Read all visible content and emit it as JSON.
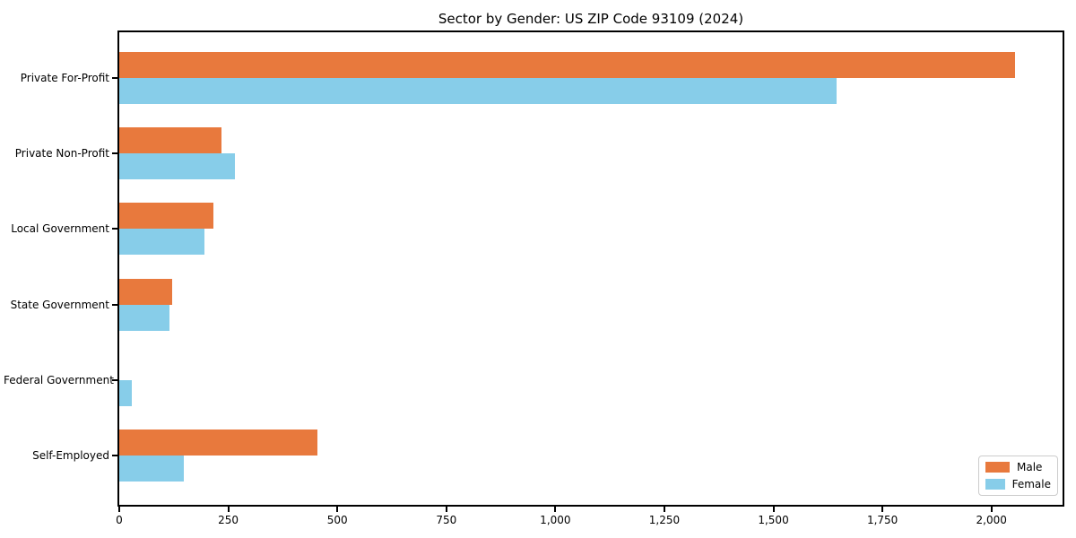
{
  "chart_data": {
    "type": "bar",
    "orientation": "horizontal",
    "title": "Sector by Gender: US ZIP Code 93109 (2024)",
    "categories": [
      "Private For-Profit",
      "Private Non-Profit",
      "Local Government",
      "State Government",
      "Federal Government",
      "Self-Employed"
    ],
    "series": [
      {
        "name": "Male",
        "color": "#E8793D",
        "values": [
          2055,
          235,
          215,
          122,
          0,
          455
        ]
      },
      {
        "name": "Female",
        "color": "#87CDE9",
        "values": [
          1645,
          265,
          195,
          115,
          28,
          148
        ]
      }
    ],
    "xlabel": "",
    "ylabel": "",
    "xlim": [
      0,
      2163
    ],
    "xticks": [
      {
        "value": 0,
        "label": "0"
      },
      {
        "value": 250,
        "label": "250"
      },
      {
        "value": 500,
        "label": "500"
      },
      {
        "value": 750,
        "label": "750"
      },
      {
        "value": 1000,
        "label": "1,000"
      },
      {
        "value": 1250,
        "label": "1,250"
      },
      {
        "value": 1500,
        "label": "1,500"
      },
      {
        "value": 1750,
        "label": "1,750"
      },
      {
        "value": 2000,
        "label": "2,000"
      }
    ],
    "grid": false,
    "legend_position": "lower right"
  }
}
